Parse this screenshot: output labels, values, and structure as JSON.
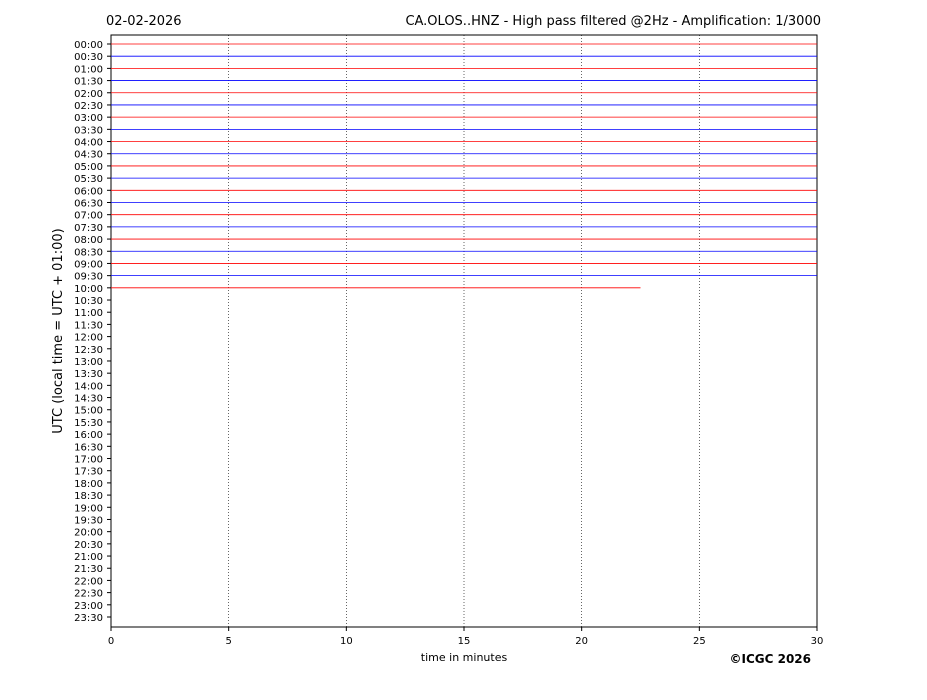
{
  "chart_data": {
    "type": "helicorder",
    "title": "CA.OLOS..HNZ - High pass filtered @2Hz - Amplification: 1/3000",
    "date": "02-02-2026",
    "x_label": "time in minutes",
    "y_label": "UTC (local time = UTC + 01:00)",
    "copyright": "©ICGC 2026",
    "categories": [
      "00:00",
      "00:30",
      "01:00",
      "01:30",
      "02:00",
      "02:30",
      "03:00",
      "03:30",
      "04:00",
      "04:30",
      "05:00",
      "05:30",
      "06:00",
      "06:30",
      "07:00",
      "07:30",
      "08:00",
      "08:30",
      "09:00",
      "09:30",
      "10:00",
      "10:30",
      "11:00",
      "11:30",
      "12:00",
      "12:30",
      "13:00",
      "13:30",
      "14:00",
      "14:30",
      "15:00",
      "15:30",
      "16:00",
      "16:30",
      "17:00",
      "17:30",
      "18:00",
      "18:30",
      "19:00",
      "19:30",
      "20:00",
      "20:30",
      "21:00",
      "21:30",
      "22:00",
      "22:30",
      "23:00",
      "23:30"
    ],
    "values": [
      30,
      30,
      30,
      30,
      30,
      30,
      30,
      30,
      30,
      30,
      30,
      30,
      30,
      30,
      30,
      30,
      30,
      30,
      30,
      30,
      22.5,
      null,
      null,
      null,
      null,
      null,
      null,
      null,
      null,
      null,
      null,
      null,
      null,
      null,
      null,
      null,
      null,
      null,
      null,
      null,
      null,
      null,
      null,
      null,
      null,
      null,
      null,
      null
    ],
    "colors": [
      "#ff0000",
      "#0000ff"
    ],
    "xlim": [
      0,
      30
    ],
    "xticks": [
      0,
      5,
      10,
      15,
      20,
      25,
      30
    ],
    "grid": true
  }
}
